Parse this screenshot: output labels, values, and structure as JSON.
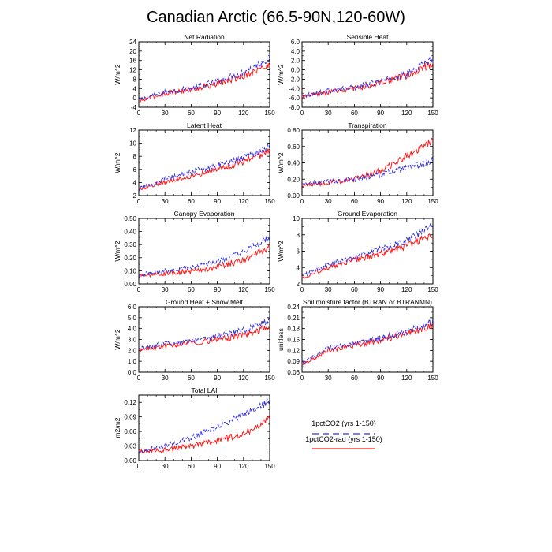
{
  "figure": {
    "title": "Canadian Arctic (66.5-90N,120-60W)"
  },
  "legend": {
    "entries": [
      {
        "label": "1pctCO2 (yrs 1-150)",
        "color": "#2f2fe0",
        "dash": "dashed"
      },
      {
        "label": "1pctCO2-rad (yrs 1-150)",
        "color": "#ff1a1a",
        "dash": "solid"
      }
    ]
  },
  "chart_data": [
    {
      "type": "line",
      "title": "Net Radiation",
      "ylabel": "W/m^2",
      "xlim": [
        0,
        150
      ],
      "ylim": [
        -4,
        24
      ],
      "xticks": [
        0,
        30,
        60,
        90,
        120,
        150
      ],
      "yticks": [
        -4,
        0,
        4,
        8,
        12,
        16,
        20,
        24
      ],
      "yticklabels": [
        "-4",
        "0",
        "4",
        "8",
        "12",
        "16",
        "20",
        "24"
      ],
      "series": [
        {
          "name": "1pctCO2 (yrs 1-150)",
          "x": [
            0,
            30,
            60,
            90,
            120,
            150
          ],
          "values": [
            -1.0,
            2.5,
            4.0,
            7.0,
            11.0,
            17.0
          ]
        },
        {
          "name": "1pctCO2-rad (yrs 1-150)",
          "x": [
            0,
            30,
            60,
            90,
            120,
            150
          ],
          "values": [
            -1.5,
            2.0,
            3.5,
            6.0,
            9.5,
            14.0
          ]
        }
      ]
    },
    {
      "type": "line",
      "title": "Sensible Heat",
      "ylabel": "W/m^2",
      "xlim": [
        0,
        150
      ],
      "ylim": [
        -8,
        6
      ],
      "xticks": [
        0,
        30,
        60,
        90,
        120,
        150
      ],
      "yticks": [
        -8,
        -6,
        -4,
        -2,
        0,
        2,
        4,
        6
      ],
      "yticklabels": [
        "-8.0",
        "-6.0",
        "-4.0",
        "-2.0",
        "0.0",
        "2.0",
        "4.0",
        "6.0"
      ],
      "series": [
        {
          "name": "1pctCO2 (yrs 1-150)",
          "x": [
            0,
            30,
            60,
            90,
            120,
            150
          ],
          "values": [
            -5.5,
            -4.5,
            -3.8,
            -2.5,
            -1.0,
            2.5
          ]
        },
        {
          "name": "1pctCO2-rad (yrs 1-150)",
          "x": [
            0,
            30,
            60,
            90,
            120,
            150
          ],
          "values": [
            -5.8,
            -4.8,
            -4.0,
            -2.8,
            -1.3,
            1.5
          ]
        }
      ]
    },
    {
      "type": "line",
      "title": "Latent Heat",
      "ylabel": "W/m^2",
      "xlim": [
        0,
        150
      ],
      "ylim": [
        2,
        12
      ],
      "xticks": [
        0,
        30,
        60,
        90,
        120,
        150
      ],
      "yticks": [
        2,
        4,
        6,
        8,
        10,
        12
      ],
      "yticklabels": [
        "2",
        "4",
        "6",
        "8",
        "10",
        "12"
      ],
      "series": [
        {
          "name": "1pctCO2 (yrs 1-150)",
          "x": [
            0,
            30,
            60,
            90,
            120,
            150
          ],
          "values": [
            3.0,
            4.5,
            5.6,
            6.6,
            7.8,
            9.5
          ]
        },
        {
          "name": "1pctCO2-rad (yrs 1-150)",
          "x": [
            0,
            30,
            60,
            90,
            120,
            150
          ],
          "values": [
            3.0,
            4.1,
            5.0,
            6.0,
            7.2,
            8.8
          ]
        }
      ]
    },
    {
      "type": "line",
      "title": "Transpiration",
      "ylabel": "W/m^2",
      "xlim": [
        0,
        150
      ],
      "ylim": [
        0,
        0.8
      ],
      "xticks": [
        0,
        30,
        60,
        90,
        120,
        150
      ],
      "yticks": [
        0,
        0.2,
        0.4,
        0.6,
        0.8
      ],
      "yticklabels": [
        "0.00",
        "0.20",
        "0.40",
        "0.60",
        "0.80"
      ],
      "series": [
        {
          "name": "1pctCO2 (yrs 1-150)",
          "x": [
            0,
            30,
            60,
            90,
            120,
            150
          ],
          "values": [
            0.14,
            0.17,
            0.2,
            0.26,
            0.33,
            0.42
          ]
        },
        {
          "name": "1pctCO2-rad (yrs 1-150)",
          "x": [
            0,
            30,
            60,
            90,
            120,
            150
          ],
          "values": [
            0.12,
            0.16,
            0.2,
            0.3,
            0.48,
            0.68
          ]
        }
      ]
    },
    {
      "type": "line",
      "title": "Canopy Evaporation",
      "ylabel": "W/m^2",
      "xlim": [
        0,
        150
      ],
      "ylim": [
        0,
        0.5
      ],
      "xticks": [
        0,
        30,
        60,
        90,
        120,
        150
      ],
      "yticks": [
        0,
        0.1,
        0.2,
        0.3,
        0.4,
        0.5
      ],
      "yticklabels": [
        "0.00",
        "0.10",
        "0.20",
        "0.30",
        "0.40",
        "0.50"
      ],
      "series": [
        {
          "name": "1pctCO2 (yrs 1-150)",
          "x": [
            0,
            30,
            60,
            90,
            120,
            150
          ],
          "values": [
            0.07,
            0.1,
            0.13,
            0.17,
            0.24,
            0.36
          ]
        },
        {
          "name": "1pctCO2-rad (yrs 1-150)",
          "x": [
            0,
            30,
            60,
            90,
            120,
            150
          ],
          "values": [
            0.06,
            0.08,
            0.1,
            0.13,
            0.18,
            0.28
          ]
        }
      ]
    },
    {
      "type": "line",
      "title": "Ground Evaporation",
      "ylabel": "W/m^2",
      "xlim": [
        0,
        150
      ],
      "ylim": [
        2,
        10
      ],
      "xticks": [
        0,
        30,
        60,
        90,
        120,
        150
      ],
      "yticks": [
        2,
        4,
        6,
        8,
        10
      ],
      "yticklabels": [
        "2",
        "4",
        "6",
        "8",
        "10"
      ],
      "series": [
        {
          "name": "1pctCO2 (yrs 1-150)",
          "x": [
            0,
            30,
            60,
            90,
            120,
            150
          ],
          "values": [
            3.0,
            4.3,
            5.3,
            6.2,
            7.3,
            9.2
          ]
        },
        {
          "name": "1pctCO2-rad (yrs 1-150)",
          "x": [
            0,
            30,
            60,
            90,
            120,
            150
          ],
          "values": [
            2.8,
            4.0,
            4.9,
            5.7,
            6.6,
            8.0
          ]
        }
      ]
    },
    {
      "type": "line",
      "title": "Ground Heat + Snow Melt",
      "ylabel": "W/m^2",
      "xlim": [
        0,
        150
      ],
      "ylim": [
        0,
        6
      ],
      "xticks": [
        0,
        30,
        60,
        90,
        120,
        150
      ],
      "yticks": [
        0,
        1,
        2,
        3,
        4,
        5,
        6
      ],
      "yticklabels": [
        "0.0",
        "1.0",
        "2.0",
        "3.0",
        "4.0",
        "5.0",
        "6.0"
      ],
      "series": [
        {
          "name": "1pctCO2 (yrs 1-150)",
          "x": [
            0,
            30,
            60,
            90,
            120,
            150
          ],
          "values": [
            2.2,
            2.6,
            2.9,
            3.3,
            3.8,
            4.8
          ]
        },
        {
          "name": "1pctCO2-rad (yrs 1-150)",
          "x": [
            0,
            30,
            60,
            90,
            120,
            150
          ],
          "values": [
            2.0,
            2.4,
            2.7,
            3.0,
            3.4,
            4.2
          ]
        }
      ]
    },
    {
      "type": "line",
      "title": "Soil moisture factor (BTRAN or BTRANMN)",
      "ylabel": "unitless",
      "xlim": [
        0,
        150
      ],
      "ylim": [
        0.06,
        0.24
      ],
      "xticks": [
        0,
        30,
        60,
        90,
        120,
        150
      ],
      "yticks": [
        0.06,
        0.09,
        0.12,
        0.15,
        0.18,
        0.21,
        0.24
      ],
      "yticklabels": [
        "0.06",
        "0.09",
        "0.12",
        "0.15",
        "0.18",
        "0.21",
        "0.24"
      ],
      "series": [
        {
          "name": "1pctCO2 (yrs 1-150)",
          "x": [
            0,
            30,
            60,
            90,
            120,
            150
          ],
          "values": [
            0.085,
            0.125,
            0.14,
            0.153,
            0.172,
            0.2
          ]
        },
        {
          "name": "1pctCO2-rad (yrs 1-150)",
          "x": [
            0,
            30,
            60,
            90,
            120,
            150
          ],
          "values": [
            0.08,
            0.12,
            0.135,
            0.148,
            0.165,
            0.19
          ]
        }
      ]
    },
    {
      "type": "line",
      "title": "Total LAI",
      "ylabel": "m2/m2",
      "xlim": [
        0,
        150
      ],
      "ylim": [
        0,
        0.135
      ],
      "xticks": [
        0,
        30,
        60,
        90,
        120,
        150
      ],
      "yticks": [
        0,
        0.03,
        0.06,
        0.09,
        0.12
      ],
      "yticklabels": [
        "0.00",
        "0.03",
        "0.06",
        "0.09",
        "0.12"
      ],
      "series": [
        {
          "name": "1pctCO2 (yrs 1-150)",
          "x": [
            0,
            30,
            60,
            90,
            120,
            150
          ],
          "values": [
            0.018,
            0.03,
            0.047,
            0.068,
            0.095,
            0.122
          ]
        },
        {
          "name": "1pctCO2-rad (yrs 1-150)",
          "x": [
            0,
            30,
            60,
            90,
            120,
            150
          ],
          "values": [
            0.018,
            0.022,
            0.03,
            0.04,
            0.055,
            0.085
          ]
        }
      ]
    }
  ]
}
